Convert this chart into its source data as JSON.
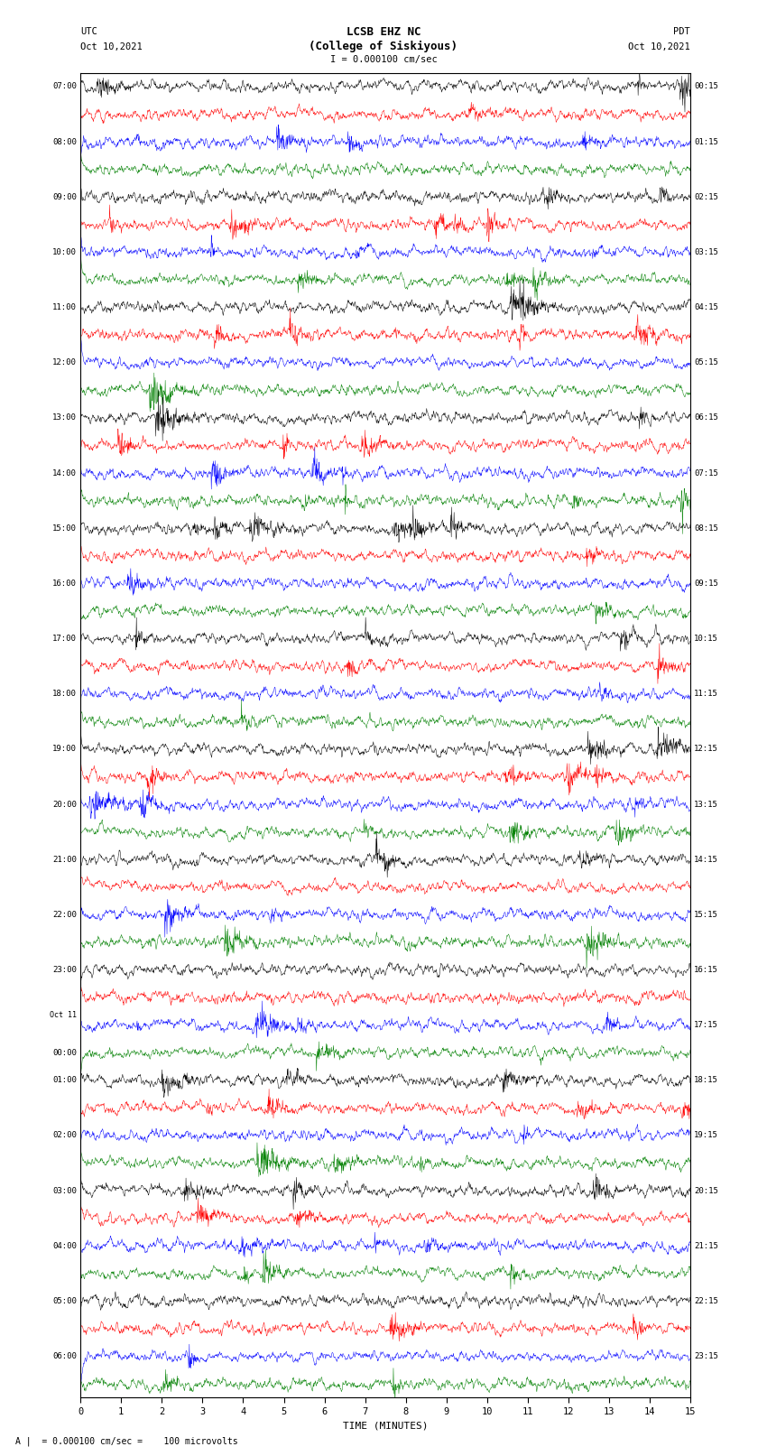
{
  "title_line1": "LCSB EHZ NC",
  "title_line2": "(College of Siskiyous)",
  "scale_text": "I = 0.000100 cm/sec",
  "left_timezone": "UTC",
  "left_date": "Oct 10,2021",
  "right_timezone": "PDT",
  "right_date": "Oct 10,2021",
  "bottom_label": "TIME (MINUTES)",
  "footnote": "A |  = 0.000100 cm/sec =    100 microvolts",
  "left_times": [
    "07:00",
    "",
    "08:00",
    "",
    "09:00",
    "",
    "10:00",
    "",
    "11:00",
    "",
    "12:00",
    "",
    "13:00",
    "",
    "14:00",
    "",
    "15:00",
    "",
    "16:00",
    "",
    "17:00",
    "",
    "18:00",
    "",
    "19:00",
    "",
    "20:00",
    "",
    "21:00",
    "",
    "22:00",
    "",
    "23:00",
    "",
    "Oct 11",
    "00:00",
    "01:00",
    "",
    "02:00",
    "",
    "03:00",
    "",
    "04:00",
    "",
    "05:00",
    "",
    "06:00",
    ""
  ],
  "right_times": [
    "00:15",
    "",
    "01:15",
    "",
    "02:15",
    "",
    "03:15",
    "",
    "04:15",
    "",
    "05:15",
    "",
    "06:15",
    "",
    "07:15",
    "",
    "08:15",
    "",
    "09:15",
    "",
    "10:15",
    "",
    "11:15",
    "",
    "12:15",
    "",
    "13:15",
    "",
    "14:15",
    "",
    "15:15",
    "",
    "16:15",
    "",
    "17:15",
    "",
    "18:15",
    "",
    "19:15",
    "",
    "20:15",
    "",
    "21:15",
    "",
    "22:15",
    "",
    "23:15",
    ""
  ],
  "n_rows": 48,
  "colors_cycle": [
    "black",
    "red",
    "blue",
    "green"
  ],
  "fig_width": 8.5,
  "fig_height": 16.13,
  "bg_color": "white",
  "line_width": 0.35,
  "x_min": 0,
  "x_max": 15,
  "x_ticks": [
    0,
    1,
    2,
    3,
    4,
    5,
    6,
    7,
    8,
    9,
    10,
    11,
    12,
    13,
    14,
    15
  ]
}
